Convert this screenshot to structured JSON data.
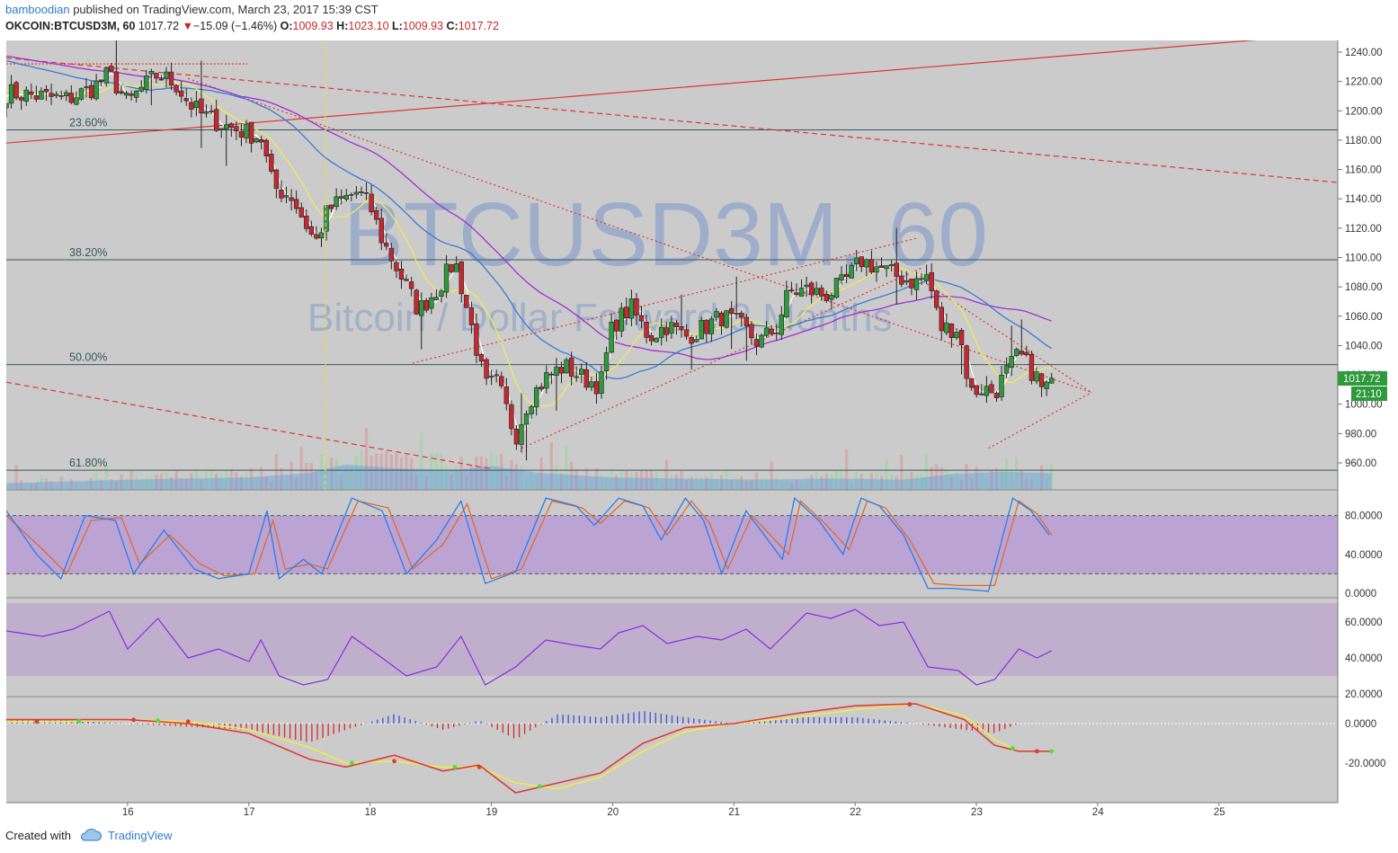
{
  "header": {
    "author": "bamboodian",
    "published_text": "published on TradingView.com, March 23, 2017 15:39 CST",
    "symbol": "OKCOIN:BTCUSD3M, 60",
    "last": "1017.72",
    "change": "−15.09 (−1.46%)",
    "o_label": "O:",
    "o": "1009.93",
    "h_label": "H:",
    "h": "1023.10",
    "l_label": "L:",
    "l": "1009.93",
    "c_label": "C:",
    "c": "1017.72"
  },
  "watermark": {
    "symbol": "BTCUSD3M, 60",
    "description": "Bitcoin / Dollar Forward 3 Months"
  },
  "price_badge": {
    "price": "1017.72",
    "countdown": "21:10"
  },
  "footer": {
    "created_with": "Created with",
    "brand": "TradingView"
  },
  "colors": {
    "background": "#cbcbcb",
    "up": "#2e9a3c",
    "down": "#c5282f",
    "sma_fast": "#ffffff",
    "sma_mid": "#ecec5a",
    "sma_slow": "#3a7ad8",
    "sma_200": "#a030d8",
    "trend": "#e03434",
    "fib": "#37575a",
    "band": "#b89ed6"
  },
  "chart_data": {
    "type": "candlestick",
    "x_ticks": [
      "16",
      "17",
      "18",
      "19",
      "20",
      "21",
      "22",
      "23",
      "24",
      "25"
    ],
    "price_axis": {
      "ticks": [
        "1240.00",
        "1220.00",
        "1200.00",
        "1180.00",
        "1160.00",
        "1140.00",
        "1120.00",
        "1100.00",
        "1080.00",
        "1060.00",
        "1040.00",
        "1020.00",
        "1000.00",
        "980.00",
        "960.00"
      ],
      "ylim": [
        940,
        1250
      ]
    },
    "fib_levels": [
      {
        "label": "23.60%",
        "price": 1187
      },
      {
        "label": "38.20%",
        "price": 1098.5
      },
      {
        "label": "50.00%",
        "price": 1027
      },
      {
        "label": "61.80%",
        "price": 955
      }
    ],
    "close_anchors": [
      [
        15.05,
        1212
      ],
      [
        15.5,
        1208
      ],
      [
        15.7,
        1215
      ],
      [
        15.85,
        1225
      ],
      [
        16.0,
        1205
      ],
      [
        16.1,
        1214
      ],
      [
        16.25,
        1225
      ],
      [
        16.4,
        1218
      ],
      [
        16.5,
        1206
      ],
      [
        16.6,
        1198
      ],
      [
        16.8,
        1190
      ],
      [
        16.95,
        1186
      ],
      [
        17.1,
        1182
      ],
      [
        17.2,
        1148
      ],
      [
        17.35,
        1142
      ],
      [
        17.55,
        1110
      ],
      [
        17.65,
        1132
      ],
      [
        17.75,
        1138
      ],
      [
        17.9,
        1145
      ],
      [
        18.0,
        1135
      ],
      [
        18.1,
        1112
      ],
      [
        18.25,
        1088
      ],
      [
        18.4,
        1064
      ],
      [
        18.55,
        1078
      ],
      [
        18.7,
        1098
      ],
      [
        18.85,
        1048
      ],
      [
        18.95,
        1012
      ],
      [
        19.05,
        1015
      ],
      [
        19.2,
        978
      ],
      [
        19.3,
        1002
      ],
      [
        19.45,
        1018
      ],
      [
        19.6,
        1026
      ],
      [
        19.75,
        1018
      ],
      [
        19.9,
        1013
      ],
      [
        20.0,
        1054
      ],
      [
        20.15,
        1066
      ],
      [
        20.3,
        1046
      ],
      [
        20.45,
        1054
      ],
      [
        20.6,
        1046
      ],
      [
        20.75,
        1052
      ],
      [
        20.9,
        1060
      ],
      [
        21.05,
        1054
      ],
      [
        21.2,
        1042
      ],
      [
        21.35,
        1052
      ],
      [
        21.45,
        1076
      ],
      [
        21.6,
        1078
      ],
      [
        21.75,
        1074
      ],
      [
        21.9,
        1082
      ],
      [
        22.05,
        1098
      ],
      [
        22.2,
        1093
      ],
      [
        22.35,
        1087
      ],
      [
        22.5,
        1083
      ],
      [
        22.6,
        1088
      ],
      [
        22.7,
        1052
      ],
      [
        22.85,
        1052
      ],
      [
        22.95,
        1008
      ],
      [
        23.05,
        1011
      ],
      [
        23.15,
        1008
      ],
      [
        23.25,
        1022
      ],
      [
        23.35,
        1034
      ],
      [
        23.5,
        1018
      ],
      [
        23.55,
        1008
      ],
      [
        23.62,
        1017.72
      ]
    ],
    "volume_anchors": [
      [
        15.0,
        0.12
      ],
      [
        15.5,
        0.15
      ],
      [
        16.0,
        0.18
      ],
      [
        16.5,
        0.2
      ],
      [
        17.0,
        0.22
      ],
      [
        17.5,
        0.3
      ],
      [
        17.8,
        0.45
      ],
      [
        18.2,
        0.38
      ],
      [
        18.7,
        0.35
      ],
      [
        19.0,
        0.42
      ],
      [
        19.4,
        0.3
      ],
      [
        20.0,
        0.22
      ],
      [
        20.6,
        0.2
      ],
      [
        21.2,
        0.18
      ],
      [
        21.8,
        0.2
      ],
      [
        22.4,
        0.18
      ],
      [
        22.8,
        0.28
      ],
      [
        23.2,
        0.32
      ],
      [
        23.6,
        0.3
      ]
    ],
    "stoch_rsi": {
      "ticks": [
        "80.0000",
        "40.0000",
        "0.0000"
      ],
      "band": [
        20,
        80
      ],
      "k": [
        [
          15.0,
          85
        ],
        [
          15.25,
          40
        ],
        [
          15.45,
          15
        ],
        [
          15.65,
          80
        ],
        [
          15.9,
          75
        ],
        [
          16.05,
          20
        ],
        [
          16.3,
          65
        ],
        [
          16.55,
          25
        ],
        [
          16.75,
          15
        ],
        [
          17.0,
          20
        ],
        [
          17.15,
          85
        ],
        [
          17.25,
          15
        ],
        [
          17.45,
          35
        ],
        [
          17.6,
          20
        ],
        [
          17.85,
          98
        ],
        [
          18.1,
          85
        ],
        [
          18.3,
          20
        ],
        [
          18.55,
          55
        ],
        [
          18.75,
          95
        ],
        [
          18.95,
          10
        ],
        [
          19.2,
          22
        ],
        [
          19.45,
          98
        ],
        [
          19.7,
          90
        ],
        [
          19.85,
          70
        ],
        [
          20.05,
          98
        ],
        [
          20.25,
          90
        ],
        [
          20.4,
          55
        ],
        [
          20.6,
          98
        ],
        [
          20.75,
          75
        ],
        [
          20.9,
          20
        ],
        [
          21.1,
          85
        ],
        [
          21.25,
          60
        ],
        [
          21.4,
          35
        ],
        [
          21.5,
          98
        ],
        [
          21.7,
          75
        ],
        [
          21.9,
          40
        ],
        [
          22.05,
          98
        ],
        [
          22.2,
          90
        ],
        [
          22.4,
          60
        ],
        [
          22.6,
          5
        ],
        [
          22.8,
          5
        ],
        [
          23.1,
          2
        ],
        [
          23.3,
          98
        ],
        [
          23.45,
          85
        ],
        [
          23.6,
          60
        ]
      ],
      "d": [
        [
          15.0,
          80
        ],
        [
          15.3,
          45
        ],
        [
          15.5,
          20
        ],
        [
          15.7,
          75
        ],
        [
          15.95,
          78
        ],
        [
          16.1,
          30
        ],
        [
          16.35,
          60
        ],
        [
          16.6,
          30
        ],
        [
          16.8,
          18
        ],
        [
          17.05,
          20
        ],
        [
          17.2,
          75
        ],
        [
          17.3,
          25
        ],
        [
          17.5,
          30
        ],
        [
          17.65,
          25
        ],
        [
          17.9,
          95
        ],
        [
          18.15,
          88
        ],
        [
          18.35,
          25
        ],
        [
          18.6,
          50
        ],
        [
          18.8,
          92
        ],
        [
          19.0,
          15
        ],
        [
          19.25,
          25
        ],
        [
          19.5,
          95
        ],
        [
          19.75,
          88
        ],
        [
          19.9,
          72
        ],
        [
          20.1,
          95
        ],
        [
          20.3,
          88
        ],
        [
          20.45,
          60
        ],
        [
          20.65,
          95
        ],
        [
          20.8,
          72
        ],
        [
          20.95,
          25
        ],
        [
          21.15,
          80
        ],
        [
          21.3,
          60
        ],
        [
          21.45,
          40
        ],
        [
          21.55,
          95
        ],
        [
          21.75,
          72
        ],
        [
          21.95,
          45
        ],
        [
          22.1,
          95
        ],
        [
          22.25,
          88
        ],
        [
          22.45,
          55
        ],
        [
          22.65,
          10
        ],
        [
          22.85,
          8
        ],
        [
          23.15,
          8
        ],
        [
          23.35,
          95
        ],
        [
          23.5,
          82
        ],
        [
          23.62,
          60
        ]
      ]
    },
    "rsi": {
      "ticks": [
        "60.0000",
        "40.0000",
        "20.0000"
      ],
      "band": [
        30,
        70
      ],
      "line": [
        [
          15.0,
          55
        ],
        [
          15.3,
          52
        ],
        [
          15.55,
          56
        ],
        [
          15.85,
          66
        ],
        [
          16.0,
          45
        ],
        [
          16.25,
          62
        ],
        [
          16.5,
          40
        ],
        [
          16.75,
          45
        ],
        [
          17.0,
          38
        ],
        [
          17.1,
          50
        ],
        [
          17.25,
          30
        ],
        [
          17.45,
          25
        ],
        [
          17.65,
          28
        ],
        [
          17.85,
          52
        ],
        [
          18.1,
          40
        ],
        [
          18.3,
          30
        ],
        [
          18.55,
          35
        ],
        [
          18.75,
          52
        ],
        [
          18.95,
          25
        ],
        [
          19.2,
          35
        ],
        [
          19.45,
          50
        ],
        [
          19.7,
          47
        ],
        [
          19.9,
          45
        ],
        [
          20.05,
          54
        ],
        [
          20.25,
          58
        ],
        [
          20.45,
          48
        ],
        [
          20.7,
          52
        ],
        [
          20.9,
          50
        ],
        [
          21.1,
          56
        ],
        [
          21.3,
          45
        ],
        [
          21.45,
          55
        ],
        [
          21.6,
          65
        ],
        [
          21.8,
          62
        ],
        [
          22.0,
          67
        ],
        [
          22.2,
          58
        ],
        [
          22.4,
          60
        ],
        [
          22.6,
          35
        ],
        [
          22.85,
          33
        ],
        [
          23.0,
          25
        ],
        [
          23.15,
          28
        ],
        [
          23.35,
          45
        ],
        [
          23.5,
          40
        ],
        [
          23.62,
          44
        ]
      ]
    },
    "macd": {
      "ticks": [
        "0.0000",
        "-20.0000"
      ],
      "ylim": [
        -40,
        10
      ],
      "fast": [
        [
          15.0,
          2
        ],
        [
          15.5,
          2
        ],
        [
          16.0,
          2
        ],
        [
          16.5,
          0
        ],
        [
          17.0,
          -5
        ],
        [
          17.5,
          -18
        ],
        [
          17.8,
          -22
        ],
        [
          18.2,
          -16
        ],
        [
          18.6,
          -24
        ],
        [
          18.9,
          -21
        ],
        [
          19.2,
          -35
        ],
        [
          19.55,
          -30
        ],
        [
          19.9,
          -25
        ],
        [
          20.25,
          -10
        ],
        [
          20.6,
          -2
        ],
        [
          21.0,
          0
        ],
        [
          21.5,
          5
        ],
        [
          22.0,
          9
        ],
        [
          22.5,
          10
        ],
        [
          22.9,
          2
        ],
        [
          23.15,
          -11
        ],
        [
          23.35,
          -14
        ],
        [
          23.62,
          -14
        ]
      ],
      "signal": [
        [
          15.0,
          1
        ],
        [
          15.5,
          1
        ],
        [
          16.0,
          2
        ],
        [
          16.5,
          1
        ],
        [
          17.0,
          -3
        ],
        [
          17.5,
          -12
        ],
        [
          17.8,
          -20
        ],
        [
          18.2,
          -19
        ],
        [
          18.6,
          -22
        ],
        [
          18.9,
          -22
        ],
        [
          19.2,
          -30
        ],
        [
          19.55,
          -33
        ],
        [
          19.9,
          -27
        ],
        [
          20.25,
          -14
        ],
        [
          20.6,
          -4
        ],
        [
          21.0,
          0
        ],
        [
          21.5,
          3
        ],
        [
          22.0,
          7
        ],
        [
          22.5,
          10
        ],
        [
          22.9,
          4
        ],
        [
          23.15,
          -8
        ],
        [
          23.35,
          -14
        ],
        [
          23.62,
          -14
        ]
      ]
    }
  }
}
